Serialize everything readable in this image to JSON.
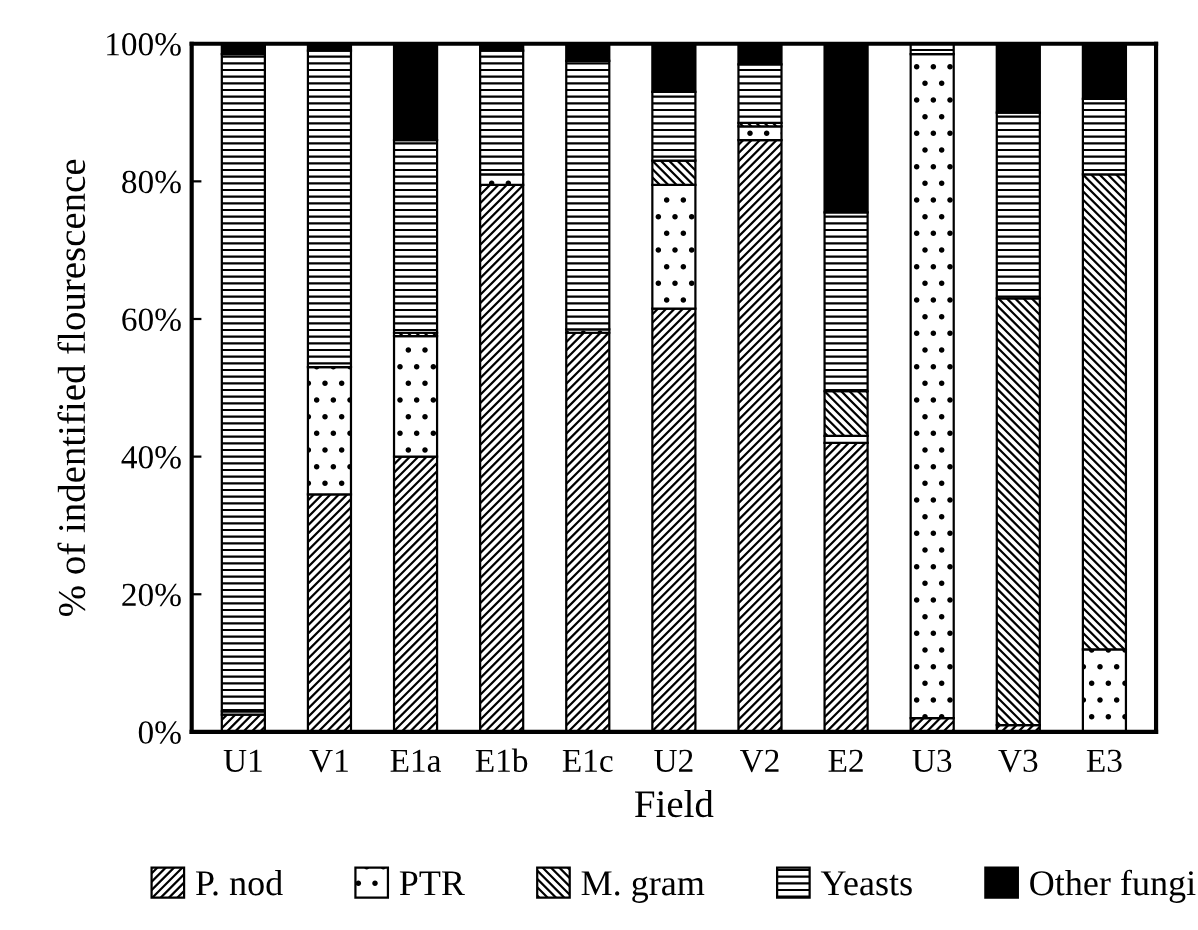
{
  "chart_data": {
    "type": "bar",
    "stacked": true,
    "xlabel": "Field",
    "ylabel": "% of indentified flourescence",
    "categories": [
      "U1",
      "V1",
      "E1a",
      "E1b",
      "E1c",
      "U2",
      "V2",
      "E2",
      "U3",
      "V3",
      "E3"
    ],
    "series": [
      {
        "name": "P. nod",
        "color": "#000000",
        "values": [
          2.5,
          34.5,
          40,
          79.5,
          58,
          61.5,
          86,
          42,
          2,
          1,
          0
        ]
      },
      {
        "name": "PTR",
        "color": "#000000",
        "values": [
          0.5,
          18.5,
          17.5,
          1.5,
          0.5,
          18,
          2,
          1,
          96.5,
          0,
          12
        ]
      },
      {
        "name": "M. gram",
        "color": "#000000",
        "values": [
          0,
          0,
          0.5,
          0,
          0,
          3.5,
          0.5,
          6.5,
          0,
          62,
          69
        ]
      },
      {
        "name": "Yeasts",
        "color": "#000000",
        "values": [
          95.5,
          46,
          28,
          18,
          39,
          10,
          8.5,
          26,
          1.5,
          27,
          11
        ]
      },
      {
        "name": "Other fungi",
        "color": "#000000",
        "values": [
          1.5,
          1,
          14,
          1,
          2.5,
          7,
          3,
          24.5,
          0,
          10,
          8
        ]
      }
    ],
    "ylim": [
      0,
      100
    ],
    "yticks": [
      {
        "value": 0,
        "label": "0%"
      },
      {
        "value": 20,
        "label": "20%"
      },
      {
        "value": 40,
        "label": "40%"
      },
      {
        "value": 60,
        "label": "60%"
      },
      {
        "value": 80,
        "label": "80%"
      },
      {
        "value": 100,
        "label": "100%"
      }
    ],
    "legend": "bottom",
    "grid": false
  }
}
